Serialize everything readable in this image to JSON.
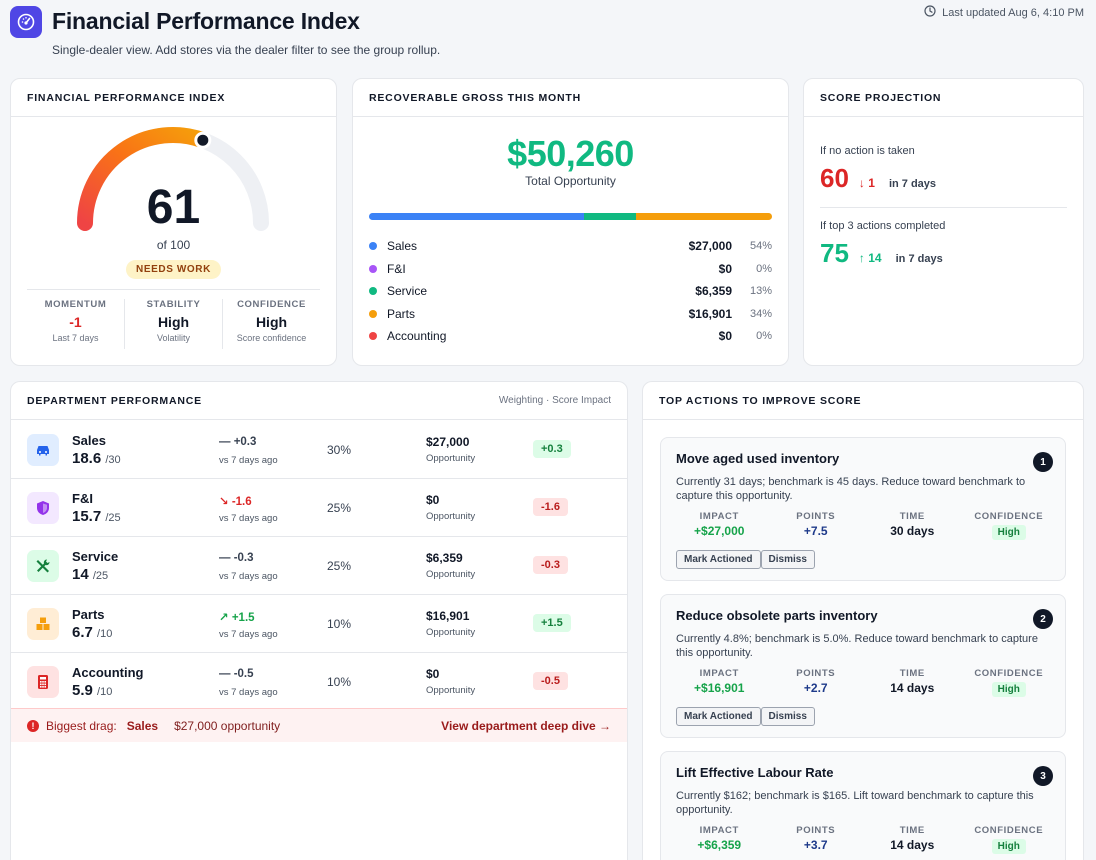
{
  "header": {
    "title": "Financial Performance Index",
    "subtitle": "Single-dealer view. Add stores via the dealer filter to see the group rollup.",
    "last_updated": "Last updated Aug 6, 4:10 PM"
  },
  "fpi": {
    "heading": "FINANCIAL PERFORMANCE INDEX",
    "score": "61",
    "score_value": 61,
    "max_value": 100,
    "of_label": "of 100",
    "badge": "NEEDS WORK",
    "stats": [
      {
        "label": "MOMENTUM",
        "value": "-1",
        "sub": "Last 7 days"
      },
      {
        "label": "STABILITY",
        "value": "High",
        "sub": "Volatility"
      },
      {
        "label": "CONFIDENCE",
        "value": "High",
        "sub": "Score confidence"
      }
    ]
  },
  "gross": {
    "heading": "RECOVERABLE GROSS THIS MONTH",
    "total": "$50,260",
    "total_label": "Total Opportunity",
    "segments": [
      {
        "name": "Sales",
        "amount": "$27,000",
        "pct": "54%",
        "value": 54,
        "color": "#3b82f6"
      },
      {
        "name": "F&I",
        "amount": "$0",
        "pct": "0%",
        "value": 0,
        "color": "#a855f7"
      },
      {
        "name": "Service",
        "amount": "$6,359",
        "pct": "13%",
        "value": 13,
        "color": "#10b981"
      },
      {
        "name": "Parts",
        "amount": "$16,901",
        "pct": "34%",
        "value": 34,
        "color": "#f59e0b"
      },
      {
        "name": "Accounting",
        "amount": "$0",
        "pct": "0%",
        "value": 0,
        "color": "#ef4444"
      }
    ]
  },
  "projection": {
    "heading": "SCORE PROJECTION",
    "no_action": {
      "caption": "If no action is taken",
      "score": "60",
      "change": "↓ 1",
      "period": "in 7 days"
    },
    "top_actions": {
      "caption": "If top 3 actions completed",
      "score": "75",
      "change": "↑ 14",
      "period": "in 7 days"
    }
  },
  "department": {
    "heading": "DEPARTMENT PERFORMANCE",
    "subheading": "Weighting · Score Impact",
    "rows": [
      {
        "name": "Sales",
        "score": "18.6",
        "out_of": "/30",
        "trend": "— +0.3",
        "trend_dir": "flat",
        "vs": "vs 7 days ago",
        "weight": "30%",
        "amount": "$27,000",
        "opp": "Opportunity",
        "impact": "+0.3",
        "impact_dir": "pos",
        "icon": "car-icon",
        "bg": "#e0edff",
        "fg": "#2563eb"
      },
      {
        "name": "F&I",
        "score": "15.7",
        "out_of": "/25",
        "trend": "↘ -1.6",
        "trend_dir": "down",
        "vs": "vs 7 days ago",
        "weight": "25%",
        "amount": "$0",
        "opp": "Opportunity",
        "impact": "-1.6",
        "impact_dir": "neg",
        "icon": "shield-icon",
        "bg": "#f3e8ff",
        "fg": "#9333ea"
      },
      {
        "name": "Service",
        "score": "14",
        "out_of": "/25",
        "trend": "— -0.3",
        "trend_dir": "flat",
        "vs": "vs 7 days ago",
        "weight": "25%",
        "amount": "$6,359",
        "opp": "Opportunity",
        "impact": "-0.3",
        "impact_dir": "neg",
        "icon": "tools-icon",
        "bg": "#dcfce7",
        "fg": "#15803d"
      },
      {
        "name": "Parts",
        "score": "6.7",
        "out_of": "/10",
        "trend": "↗ +1.5",
        "trend_dir": "up",
        "vs": "vs 7 days ago",
        "weight": "10%",
        "amount": "$16,901",
        "opp": "Opportunity",
        "impact": "+1.5",
        "impact_dir": "pos",
        "icon": "boxes-icon",
        "bg": "#ffedd5",
        "fg": "#f59e0b"
      },
      {
        "name": "Accounting",
        "score": "5.9",
        "out_of": "/10",
        "trend": "— -0.5",
        "trend_dir": "flat",
        "vs": "vs 7 days ago",
        "weight": "10%",
        "amount": "$0",
        "opp": "Opportunity",
        "impact": "-0.5",
        "impact_dir": "neg",
        "icon": "calculator-icon",
        "bg": "#fee2e2",
        "fg": "#dc2626"
      }
    ],
    "drag": {
      "label": "Biggest drag:",
      "dept": "Sales",
      "opportunity": "$27,000 opportunity",
      "link": "View department deep dive →"
    }
  },
  "actions": {
    "heading": "TOP ACTIONS TO IMPROVE SCORE",
    "metric_labels": {
      "impact": "IMPACT",
      "points": "POINTS",
      "time": "TIME",
      "confidence": "CONFIDENCE"
    },
    "buttons": {
      "mark": "Mark Actioned",
      "dismiss": "Dismiss"
    },
    "items": [
      {
        "num": "1",
        "title": "Move aged used inventory",
        "desc": "Currently 31 days; benchmark is 45 days. Reduce toward benchmark to capture this opportunity.",
        "impact": "+$27,000",
        "points": "+7.5",
        "time": "30 days",
        "confidence": "High"
      },
      {
        "num": "2",
        "title": "Reduce obsolete parts inventory",
        "desc": "Currently 4.8%; benchmark is 5.0%. Reduce toward benchmark to capture this opportunity.",
        "impact": "+$16,901",
        "points": "+2.7",
        "time": "14 days",
        "confidence": "High"
      },
      {
        "num": "3",
        "title": "Lift Effective Labour Rate",
        "desc": "Currently $162; benchmark is $165. Lift toward benchmark to capture this opportunity.",
        "impact": "+$6,359",
        "points": "+3.7",
        "time": "14 days",
        "confidence": "High"
      }
    ]
  }
}
